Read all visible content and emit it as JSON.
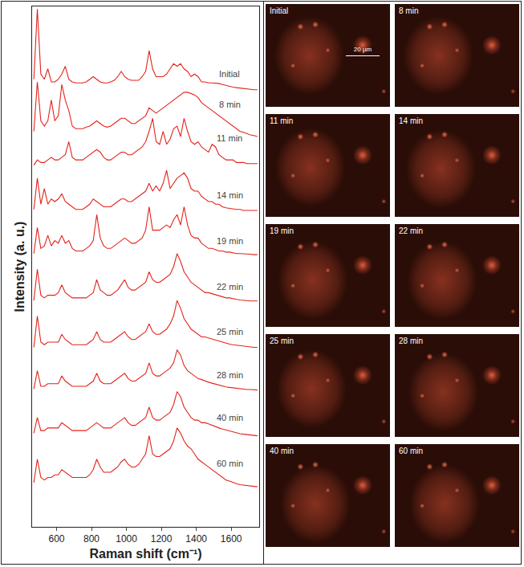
{
  "chart_data": {
    "type": "line",
    "x_label": "Raman shift (cm⁻¹)",
    "y_label": "Intensity (a. u.)",
    "x": [
      470,
      490,
      510,
      530,
      550,
      570,
      590,
      610,
      630,
      650,
      670,
      690,
      710,
      730,
      750,
      770,
      790,
      810,
      830,
      850,
      870,
      890,
      910,
      930,
      950,
      970,
      990,
      1010,
      1030,
      1050,
      1070,
      1090,
      1110,
      1130,
      1150,
      1170,
      1190,
      1210,
      1230,
      1250,
      1270,
      1290,
      1310,
      1330,
      1350,
      1370,
      1390,
      1410,
      1430,
      1450,
      1470,
      1490,
      1510,
      1530,
      1550,
      1570,
      1590,
      1610,
      1630,
      1650,
      1670,
      1690,
      1710,
      1730,
      1750
    ],
    "xlim": [
      460,
      1760
    ],
    "xticks": [
      600,
      800,
      1000,
      1200,
      1400,
      1600
    ],
    "ylim": [
      0,
      100
    ],
    "tick_labels": "x",
    "grid": false,
    "series": [
      {
        "name": "Initial",
        "color": "#e3231b",
        "values": [
          86,
          99.5,
          87,
          86,
          88,
          85.5,
          85.5,
          86,
          87,
          88.5,
          86,
          85.5,
          85.3,
          85.3,
          85.3,
          85.5,
          86,
          86.5,
          86,
          85.5,
          85.3,
          85.3,
          85.5,
          85.8,
          86.5,
          87.5,
          86.5,
          86,
          85.8,
          85.8,
          85.8,
          86.5,
          87.5,
          91.5,
          88,
          86.5,
          86.5,
          86.5,
          87,
          88,
          89,
          88.5,
          89,
          88,
          87.5,
          86.5,
          87,
          86.5,
          85.5,
          85.5,
          85.3,
          85.3,
          85.3,
          85.2,
          85,
          84.8,
          84.7,
          84.5,
          84.4,
          84.3,
          84.2,
          84.1,
          84,
          84,
          84
        ]
      },
      {
        "name": "8 min",
        "color": "#e3231b",
        "values": [
          76,
          85.5,
          78,
          77,
          78,
          82,
          78,
          79,
          85,
          82,
          80,
          77,
          76.5,
          76.5,
          76.5,
          76.8,
          77,
          77.5,
          78,
          77.5,
          77,
          76.8,
          77,
          77.5,
          78,
          78.5,
          78.5,
          78,
          77.5,
          77.5,
          78,
          78.5,
          79,
          80.5,
          80,
          79.5,
          80,
          80.5,
          81,
          81.5,
          82,
          82.5,
          83,
          83.5,
          83.5,
          83.2,
          83,
          82.5,
          81.5,
          81,
          80.5,
          80,
          79.5,
          79,
          78.5,
          78,
          77.5,
          77,
          76.5,
          76,
          75.8,
          75.5,
          75.3,
          75.2,
          75
        ]
      },
      {
        "name": "11 min",
        "color": "#e3231b",
        "values": [
          69.5,
          70.5,
          70,
          70,
          70.5,
          71,
          70.5,
          70.5,
          71,
          71.5,
          74,
          71,
          70.5,
          70.5,
          70.5,
          71,
          71.5,
          72,
          72.5,
          72,
          71,
          70.5,
          70.5,
          71,
          71.5,
          72,
          72,
          71.5,
          71.5,
          72,
          72.5,
          73,
          74,
          76,
          78.5,
          74,
          73.5,
          76,
          73.5,
          74.5,
          76.5,
          77,
          75,
          78.5,
          76,
          74,
          73.5,
          74,
          73,
          72.5,
          72,
          73.5,
          73,
          71.5,
          71,
          70.5,
          70.5,
          70.5,
          70,
          70,
          70,
          69.8,
          69.8,
          69.8,
          69.8
        ]
      },
      {
        "name": "14 min",
        "color": "#e3231b",
        "values": [
          61,
          67,
          62,
          65,
          62,
          63,
          62.5,
          63,
          64,
          62.5,
          62,
          61.5,
          61,
          61,
          61,
          61.5,
          62,
          63,
          62.5,
          62,
          61.5,
          61.5,
          61.5,
          62,
          62.5,
          63,
          63,
          62.5,
          62.5,
          63,
          63.5,
          64,
          64.5,
          66,
          64.5,
          65.5,
          64.5,
          66,
          68.5,
          65,
          66,
          67,
          67.5,
          68,
          67,
          65,
          64.5,
          64.5,
          63.5,
          63,
          62.5,
          62.5,
          62,
          62,
          61.5,
          61.3,
          61.2,
          61,
          61,
          61,
          60.8,
          60.8,
          60.8,
          60.8,
          60.8
        ]
      },
      {
        "name": "19 min",
        "color": "#e3231b",
        "values": [
          52.5,
          57.5,
          53.5,
          54,
          56,
          54,
          55,
          54.5,
          56,
          54.5,
          55,
          53.5,
          53,
          53,
          53,
          53.5,
          54,
          55,
          60,
          55.5,
          54,
          53.5,
          53.5,
          54,
          54.5,
          55,
          55.5,
          55,
          54.5,
          54.5,
          55,
          55.5,
          57,
          61.5,
          57,
          57,
          57,
          57.5,
          58,
          57.5,
          59,
          60,
          58,
          61.5,
          58,
          56,
          55.5,
          55.5,
          54.5,
          54,
          53.5,
          53.5,
          53.3,
          53,
          53,
          52.8,
          52.8,
          52.6,
          52.5,
          52.5,
          52.5,
          52.4,
          52.4,
          52.3,
          52.3
        ]
      },
      {
        "name": "22 min",
        "color": "#e3231b",
        "values": [
          43.5,
          49.5,
          44.5,
          44,
          44.5,
          44.5,
          44.5,
          45,
          46.5,
          45,
          44.5,
          44,
          44,
          44,
          44,
          44,
          44.5,
          45,
          47.5,
          45.5,
          45,
          44.5,
          44.5,
          45,
          45.5,
          46.5,
          47.5,
          46,
          45.5,
          45.5,
          46,
          46.5,
          47,
          49,
          47.5,
          47,
          47,
          47.5,
          48,
          48.5,
          50,
          52.5,
          51,
          49,
          48,
          47,
          46.5,
          46,
          45.5,
          45,
          45,
          44.8,
          44.5,
          44.3,
          44.2,
          44,
          44,
          43.8,
          43.7,
          43.6,
          43.5,
          43.5,
          43.4,
          43.4,
          43.4
        ]
      },
      {
        "name": "25 min",
        "color": "#e3231b",
        "values": [
          34.5,
          40.5,
          35.5,
          35,
          35.5,
          35.5,
          35.5,
          35.5,
          37,
          36,
          35.5,
          35,
          35,
          35,
          35,
          35,
          35.5,
          36,
          37.5,
          36,
          35.5,
          35.5,
          35.5,
          36,
          36.5,
          37,
          37.5,
          36.5,
          36,
          36,
          36.5,
          37,
          37.5,
          39,
          37.5,
          37,
          37,
          37.5,
          38,
          39,
          40.5,
          43.5,
          42,
          40,
          39,
          38,
          37.5,
          37,
          36.5,
          36.5,
          36.3,
          36,
          35.8,
          35.6,
          35.4,
          35.2,
          35.1,
          35,
          34.9,
          34.8,
          34.7,
          34.6,
          34.5,
          34.5,
          34.5
        ]
      },
      {
        "name": "28 min",
        "color": "#e3231b",
        "values": [
          26.5,
          30,
          27,
          27,
          27.5,
          27.5,
          27.5,
          27.5,
          29,
          28,
          27.5,
          27,
          27,
          27,
          27,
          27,
          27.5,
          28,
          29.5,
          28,
          27.5,
          27.5,
          27.5,
          28,
          28.5,
          29,
          29.5,
          28.5,
          28,
          28,
          28.5,
          29,
          29.5,
          31.5,
          29.5,
          29,
          29,
          29.5,
          30,
          30.5,
          31.5,
          34,
          33,
          31,
          30,
          29.5,
          29,
          28.5,
          28.3,
          28,
          27.8,
          27.6,
          27.4,
          27.2,
          27,
          26.9,
          26.8,
          26.7,
          26.6,
          26.5,
          26.5,
          26.4,
          26.4,
          26.3,
          26.3
        ]
      },
      {
        "name": "40 min",
        "color": "#e3231b",
        "values": [
          18,
          21,
          18.5,
          18.5,
          19,
          19,
          19,
          19,
          20,
          19.5,
          19,
          18.5,
          18.5,
          18.5,
          18.5,
          18.5,
          19,
          19.5,
          20,
          19.5,
          19,
          19,
          19,
          19.5,
          20,
          20.5,
          21,
          20,
          19.5,
          19.5,
          20,
          20.5,
          21,
          23,
          21,
          20.5,
          20.5,
          21,
          21.5,
          22,
          23.5,
          26,
          25,
          23,
          22,
          21,
          20.5,
          20.5,
          20,
          20,
          19.8,
          19.5,
          19.3,
          19,
          18.8,
          18.6,
          18.4,
          18.2,
          18,
          17.9,
          17.8,
          17.7,
          17.6,
          17.6,
          17.5
        ]
      },
      {
        "name": "60 min",
        "color": "#e3231b",
        "values": [
          8.5,
          13,
          9.5,
          9,
          9.5,
          9.5,
          10,
          10,
          11,
          10.5,
          10,
          9.5,
          9.5,
          9.5,
          9.5,
          9.5,
          10,
          11,
          13,
          11.5,
          10.5,
          10.5,
          10.5,
          11,
          11.5,
          12.5,
          13,
          12,
          11.5,
          11.5,
          12,
          13,
          14,
          17.5,
          14,
          13.5,
          13.5,
          14,
          14.5,
          15,
          16.5,
          19,
          18,
          16.5,
          15.5,
          15,
          14,
          13,
          12.5,
          12,
          11.5,
          11,
          10.5,
          10,
          9.5,
          9,
          8.8,
          8.5,
          8.3,
          8.1,
          8,
          7.9,
          7.8,
          7.7,
          7.7
        ]
      }
    ]
  },
  "micrographs": {
    "panels": [
      "Initial",
      "8 min",
      "11 min",
      "14 min",
      "19 min",
      "22 min",
      "25 min",
      "28 min",
      "40 min",
      "60 min"
    ],
    "scale_bar": "20 µm"
  }
}
